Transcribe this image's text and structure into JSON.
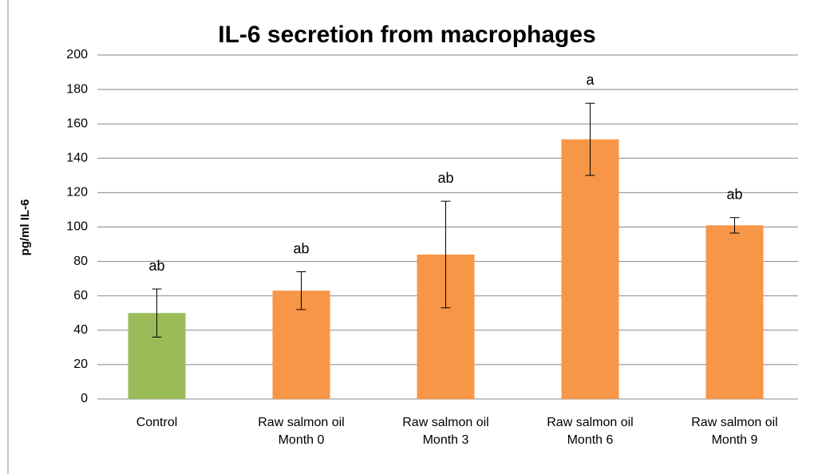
{
  "chart_data": {
    "type": "bar",
    "title": "IL-6 secretion from macrophages",
    "y_label": "pg/ml IL-6",
    "categories": [
      [
        "Control"
      ],
      [
        "Raw salmon oil",
        "Month 0"
      ],
      [
        "Raw salmon oil",
        "Month 3"
      ],
      [
        "Raw salmon oil",
        "Month 6"
      ],
      [
        "Raw salmon oil",
        "Month 9"
      ]
    ],
    "values": [
      50,
      63,
      84,
      151,
      101
    ],
    "errors": [
      14,
      11,
      31,
      21,
      4.5
    ],
    "annotations": [
      "ab",
      "ab",
      "ab",
      "a",
      "ab"
    ],
    "colors": [
      "#9bbb59",
      "#f79646",
      "#f79646",
      "#f79646",
      "#f79646"
    ],
    "ylim": [
      0,
      200
    ],
    "yticks": [
      0,
      20,
      40,
      60,
      80,
      100,
      120,
      140,
      160,
      180,
      200
    ],
    "grid": true
  }
}
